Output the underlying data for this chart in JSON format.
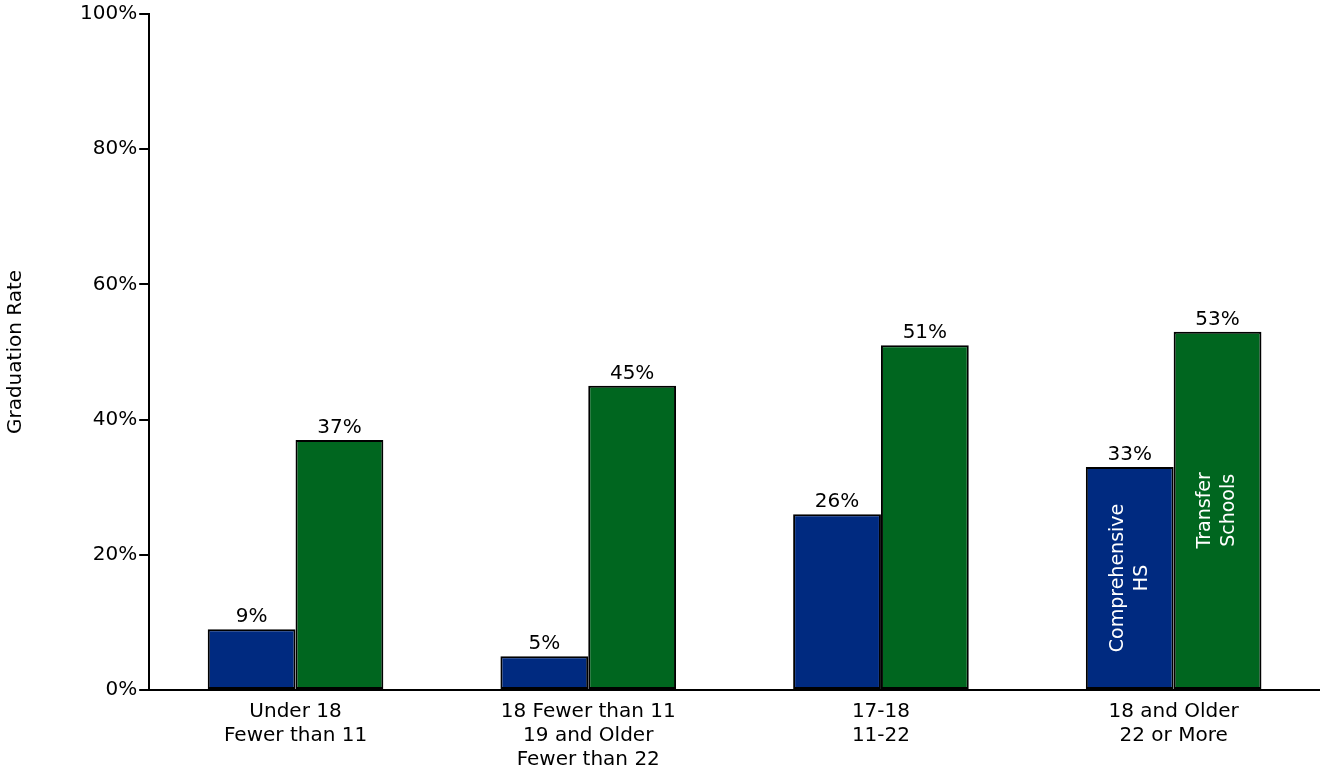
{
  "chart_data": {
    "type": "bar",
    "ylabel": "Graduation Rate",
    "categories": [
      "Under 18\nFewer than 11",
      "18 Fewer than 11\n19 and Older\nFewer than 22",
      "17-18\n11-22",
      "18 and Older\n22 or More"
    ],
    "series": [
      {
        "name": "Comprehensive HS",
        "color": "#002a80",
        "values": [
          9,
          5,
          26,
          33
        ],
        "value_labels": [
          "9%",
          "5%",
          "26%",
          "33%"
        ]
      },
      {
        "name": "Transfer Schools",
        "color": "#00661f",
        "values": [
          37,
          45,
          51,
          53
        ],
        "value_labels": [
          "37%",
          "45%",
          "51%",
          "53%"
        ]
      }
    ],
    "ylim": [
      0,
      100
    ],
    "yticks": [
      {
        "value": 0,
        "label": "0%"
      },
      {
        "value": 20,
        "label": "20%"
      },
      {
        "value": 40,
        "label": "40%"
      },
      {
        "value": 60,
        "label": "60%"
      },
      {
        "value": 80,
        "label": "80%"
      },
      {
        "value": 100,
        "label": "100%"
      }
    ],
    "grid": false,
    "legend": false
  }
}
